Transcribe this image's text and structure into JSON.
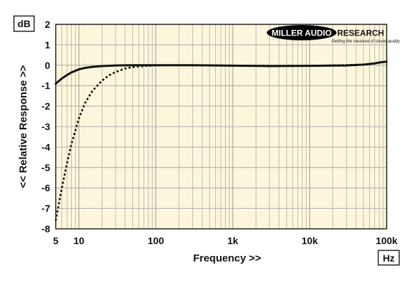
{
  "chart_data": {
    "type": "line",
    "xlabel": "Frequency >>",
    "ylabel": "<< Relative Response >>",
    "x_unit": "Hz",
    "y_unit": "dB",
    "x_scale": "log",
    "xlim": [
      5,
      100000
    ],
    "ylim": [
      -8,
      2
    ],
    "x_ticks": [
      {
        "value": 5,
        "label": "5"
      },
      {
        "value": 10,
        "label": "10"
      },
      {
        "value": 100,
        "label": "100"
      },
      {
        "value": 1000,
        "label": "1k"
      },
      {
        "value": 10000,
        "label": "10k"
      },
      {
        "value": 100000,
        "label": "100k"
      }
    ],
    "y_ticks": [
      2,
      1,
      0,
      -1,
      -2,
      -3,
      -4,
      -5,
      -6,
      -7,
      -8
    ],
    "grid": true,
    "series": [
      {
        "style": "solid",
        "color": "#111111",
        "points": [
          [
            5,
            -0.9
          ],
          [
            6,
            -0.65
          ],
          [
            7,
            -0.48
          ],
          [
            8,
            -0.35
          ],
          [
            10,
            -0.2
          ],
          [
            12,
            -0.13
          ],
          [
            15,
            -0.08
          ],
          [
            20,
            -0.04
          ],
          [
            30,
            -0.01
          ],
          [
            50,
            0.0
          ],
          [
            100,
            0.0
          ],
          [
            300,
            0.0
          ],
          [
            1000,
            -0.02
          ],
          [
            3000,
            -0.04
          ],
          [
            10000,
            -0.03
          ],
          [
            30000,
            -0.01
          ],
          [
            50000,
            0.03
          ],
          [
            70000,
            0.09
          ],
          [
            85000,
            0.15
          ],
          [
            100000,
            0.17
          ]
        ]
      },
      {
        "style": "dashed",
        "color": "#111111",
        "points": [
          [
            5,
            -7.6
          ],
          [
            6,
            -6.0
          ],
          [
            7,
            -4.8
          ],
          [
            8,
            -3.85
          ],
          [
            10,
            -2.6
          ],
          [
            12,
            -1.85
          ],
          [
            15,
            -1.25
          ],
          [
            20,
            -0.75
          ],
          [
            25,
            -0.48
          ],
          [
            30,
            -0.33
          ],
          [
            40,
            -0.16
          ],
          [
            50,
            -0.09
          ],
          [
            70,
            -0.04
          ],
          [
            100,
            -0.01
          ],
          [
            200,
            0.0
          ],
          [
            1000,
            -0.02
          ],
          [
            10000,
            -0.03
          ],
          [
            50000,
            0.03
          ],
          [
            100000,
            0.17
          ]
        ]
      }
    ]
  },
  "brand": {
    "logo_main": "MILLER AUDIO",
    "logo_side": "RESEARCH",
    "tagline": "Getting the measure of sound quality"
  },
  "colors": {
    "plot_background": "#FCF6DC",
    "grid": "#9a9a9a",
    "frame": "#222222"
  }
}
